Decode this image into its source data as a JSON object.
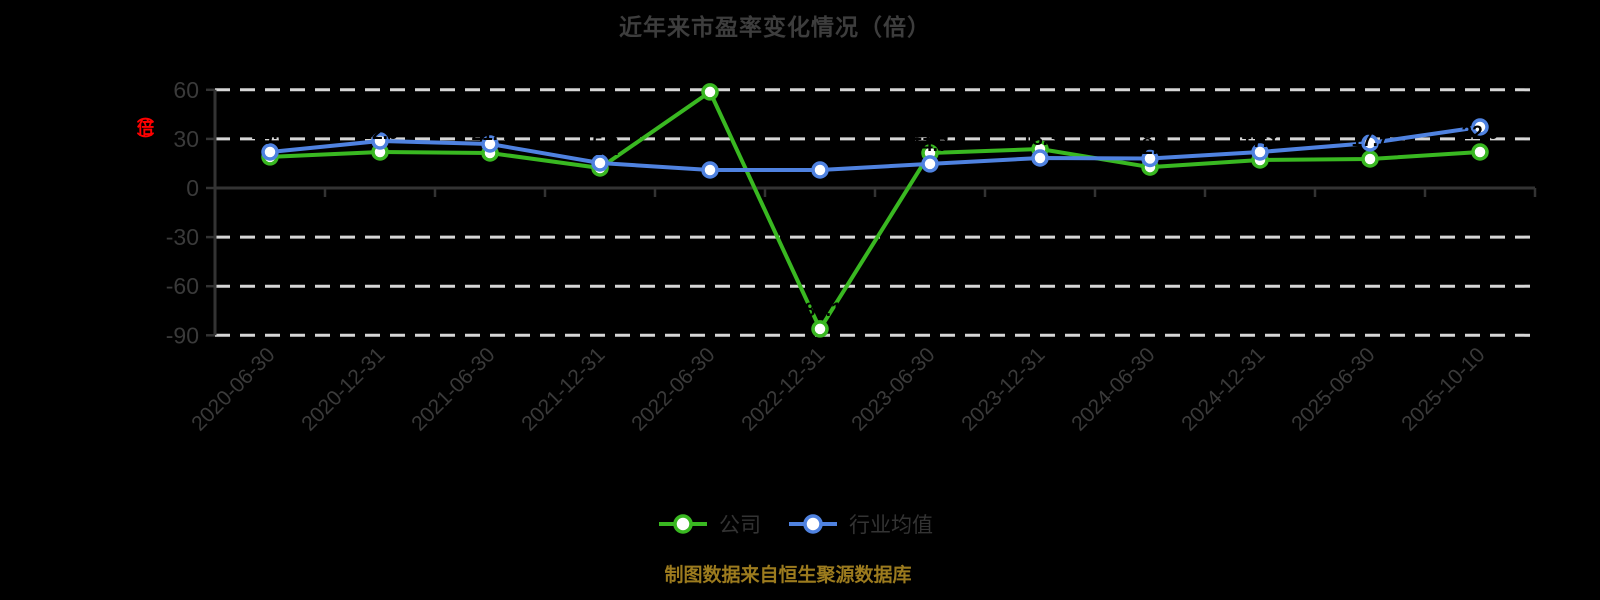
{
  "title": "近年来市盈率变化情况（倍）",
  "y_axis_name": "（倍）",
  "caption": "制图数据来自恒生聚源数据库",
  "legend": [
    {
      "label": "公司",
      "color": "#39b821"
    },
    {
      "label": "行业均值",
      "color": "#4f82e0"
    }
  ],
  "colors": {
    "background": "#000000",
    "title": "#3d3d3d",
    "axis": "#333333",
    "tick_text": "#3a3a3a",
    "grid": "#d6d6d6",
    "caption": "#9c7b1e",
    "axis_name": "#ff0000",
    "data_label": "#000000",
    "marker_fill": "#ffffff"
  },
  "chart_data": {
    "type": "line",
    "title": "近年来市盈率变化情况（倍）",
    "xlabel": "",
    "ylabel": "（倍）",
    "ylim": [
      -90,
      60
    ],
    "yticks": [
      60,
      30,
      0,
      -30,
      -60,
      -90
    ],
    "grid": "horizontal dashed",
    "legend_position": "bottom",
    "categories": [
      "2020-06-30",
      "2020-12-31",
      "2021-06-30",
      "2021-12-31",
      "2022-06-30",
      "2022-12-31",
      "2023-06-30",
      "2023-12-31",
      "2024-06-30",
      "2024-12-31",
      "2025-06-30",
      "2025-10-10"
    ],
    "series": [
      {
        "name": "公司",
        "color": "#39b821",
        "values": [
          19.0,
          22.0,
          21.4,
          12.2,
          58.7,
          -86.1,
          21.4,
          23.8,
          12.8,
          17.1,
          17.7,
          22.0
        ]
      },
      {
        "name": "行业均值",
        "color": "#4f82e0",
        "values": [
          22.0,
          28.7,
          26.9,
          15.3,
          11.0,
          11.0,
          14.7,
          18.3,
          18.0,
          22.0,
          27.5,
          37.3
        ]
      }
    ]
  }
}
